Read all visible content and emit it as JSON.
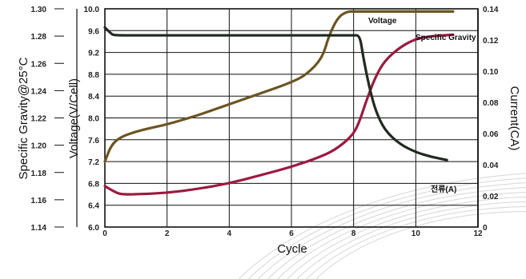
{
  "colors": {
    "voltage": "#6b5520",
    "specific_gravity": "#9b1a40",
    "current": "#1f2a1f",
    "grid": "#111111",
    "decor": "#d6d6d6"
  },
  "chart_data": {
    "type": "line",
    "title": "",
    "xlabel": "Cycle",
    "xlim": [
      0,
      12
    ],
    "x_ticks": [
      "0",
      "2",
      "4",
      "6",
      "8",
      "10",
      "12"
    ],
    "y_axes": {
      "specific_gravity": {
        "label": "Specific Gravity@25°C",
        "range": [
          1.14,
          1.3
        ],
        "ticks": [
          "1.30",
          "1.28",
          "1.26",
          "1.24",
          "1.22",
          "1.20",
          "1.18",
          "1.16",
          "1.14"
        ]
      },
      "voltage": {
        "label": "Voltage(V/Cell)",
        "range": [
          6.0,
          10.0
        ],
        "ticks": [
          "10.0",
          "9.6",
          "9.2",
          "8.8",
          "8.4",
          "8.0",
          "7.6",
          "7.2",
          "6.8",
          "6.4",
          "6.0"
        ]
      },
      "current": {
        "label": "Current(CA)",
        "range": [
          0,
          0.14
        ],
        "ticks": [
          "0.14",
          "0.12",
          "0.10",
          "0.08",
          "0.06",
          "0.04",
          "0.02",
          "0"
        ]
      }
    },
    "grid": true,
    "series": [
      {
        "name": "Voltage",
        "axis": "voltage",
        "x": [
          0,
          0.2,
          0.5,
          1.0,
          1.5,
          2.0,
          3.0,
          4.0,
          5.0,
          6.0,
          6.5,
          7.0,
          7.2,
          7.5,
          7.8,
          8.0,
          8.5,
          9.0,
          10.0,
          11.2
        ],
        "y": [
          7.2,
          7.5,
          7.65,
          7.75,
          7.82,
          7.88,
          8.05,
          8.25,
          8.45,
          8.65,
          8.8,
          9.1,
          9.5,
          9.85,
          9.95,
          9.95,
          9.95,
          9.95,
          9.95,
          9.95
        ]
      },
      {
        "name": "Specific Gravity",
        "axis": "specific_gravity",
        "x": [
          0,
          0.3,
          0.5,
          1.0,
          2.0,
          3.0,
          4.0,
          5.0,
          6.0,
          7.0,
          7.5,
          8.0,
          8.2,
          8.4,
          8.7,
          9.0,
          9.5,
          10.0,
          10.5,
          11.2
        ],
        "y": [
          1.17,
          1.166,
          1.164,
          1.164,
          1.165,
          1.168,
          1.172,
          1.178,
          1.184,
          1.192,
          1.198,
          1.208,
          1.218,
          1.232,
          1.25,
          1.262,
          1.272,
          1.278,
          1.28,
          1.281
        ]
      },
      {
        "name": "전류(A)",
        "axis": "current",
        "x": [
          0,
          0.2,
          0.3,
          1.0,
          2.0,
          4.0,
          6.0,
          7.0,
          8.0,
          8.2,
          8.3,
          8.5,
          8.7,
          9.0,
          9.5,
          10.0,
          10.5,
          11.0
        ],
        "y": [
          0.128,
          0.124,
          0.123,
          0.123,
          0.123,
          0.123,
          0.123,
          0.123,
          0.123,
          0.123,
          0.11,
          0.09,
          0.075,
          0.062,
          0.053,
          0.048,
          0.045,
          0.043
        ]
      }
    ]
  }
}
